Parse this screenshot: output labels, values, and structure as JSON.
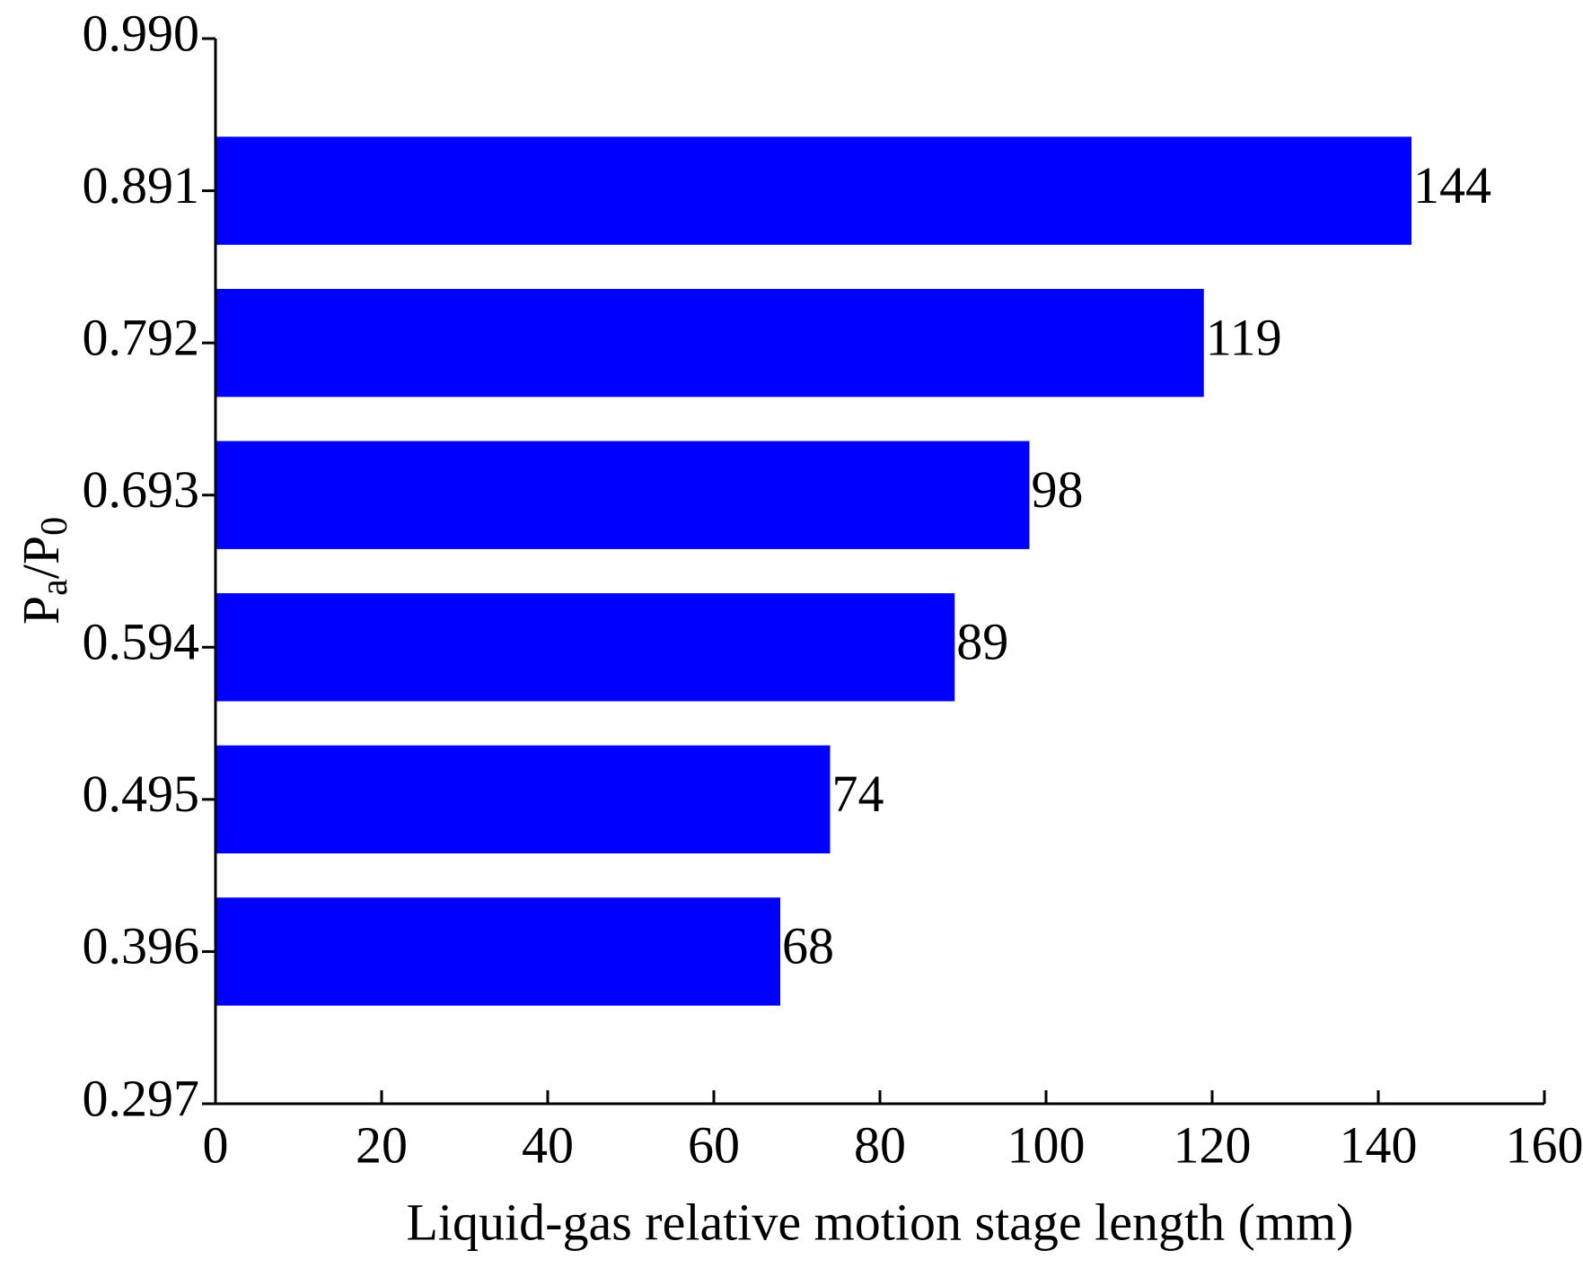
{
  "chart_data": {
    "type": "bar",
    "orientation": "horizontal",
    "x_label": "Liquid-gas relative motion stage length (mm)",
    "y_label": [
      "P",
      "a",
      "/P",
      "0"
    ],
    "y": [
      0.891,
      0.792,
      0.693,
      0.594,
      0.495,
      0.396
    ],
    "values": [
      144,
      119,
      98,
      89,
      74,
      68
    ],
    "color": "#0000ff",
    "xlim": [
      0,
      160
    ],
    "xticks": [
      0,
      20,
      40,
      60,
      80,
      100,
      120,
      140,
      160
    ],
    "ylim": [
      0.297,
      0.99
    ],
    "yticks": [
      {
        "value": 0.99,
        "label": "0.990"
      },
      0.891,
      0.792,
      0.693,
      0.594,
      0.495,
      0.396,
      0.297
    ]
  }
}
